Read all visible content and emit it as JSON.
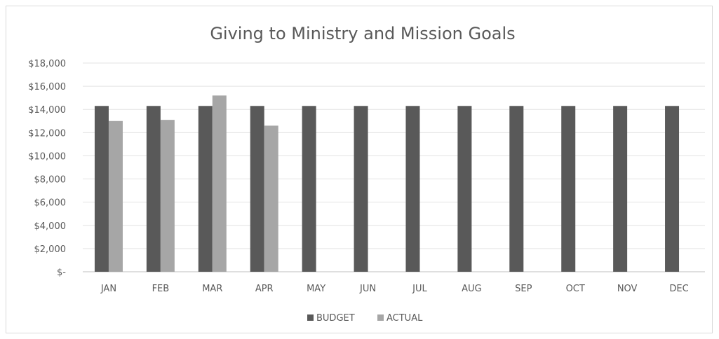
{
  "chart_data": {
    "type": "bar",
    "title": "Giving to Ministry and Mission Goals",
    "categories": [
      "JAN",
      "FEB",
      "MAR",
      "APR",
      "MAY",
      "JUN",
      "JUL",
      "AUG",
      "SEP",
      "OCT",
      "NOV",
      "DEC"
    ],
    "series": [
      {
        "name": "BUDGET",
        "color": "#595959",
        "values": [
          14300,
          14300,
          14300,
          14300,
          14300,
          14300,
          14300,
          14300,
          14300,
          14300,
          14300,
          14300
        ]
      },
      {
        "name": "ACTUAL",
        "color": "#a6a6a6",
        "values": [
          13000,
          13100,
          15200,
          12600,
          null,
          null,
          null,
          null,
          null,
          null,
          null,
          null
        ]
      }
    ],
    "ylim": [
      0,
      18000
    ],
    "yticks": [
      0,
      2000,
      4000,
      6000,
      8000,
      10000,
      12000,
      14000,
      16000,
      18000
    ],
    "ytick_labels": [
      "$-",
      "$2,000",
      "$4,000",
      "$6,000",
      "$8,000",
      "$10,000",
      "$12,000",
      "$14,000",
      "$16,000",
      "$18,000"
    ],
    "grid": true,
    "legend_position": "bottom"
  }
}
